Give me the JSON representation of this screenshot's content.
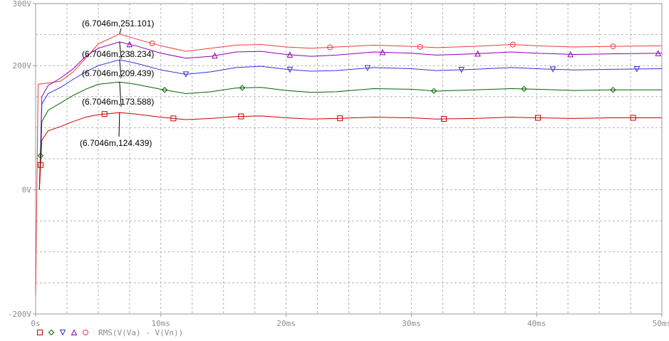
{
  "chart_data": {
    "type": "line",
    "title": "",
    "xlabel": "",
    "ylabel": "",
    "xlim": [
      0,
      50
    ],
    "ylim": [
      -200,
      300
    ],
    "grid": true,
    "x_ticks": [
      {
        "value": 0,
        "label": "0s"
      },
      {
        "value": 10,
        "label": "10ms"
      },
      {
        "value": 20,
        "label": "20ms"
      },
      {
        "value": 30,
        "label": "30ms"
      },
      {
        "value": 40,
        "label": "40ms"
      },
      {
        "value": 50,
        "label": "50ms"
      }
    ],
    "y_ticks": [
      {
        "value": 300,
        "label": "300V"
      },
      {
        "value": 200,
        "label": "200V"
      },
      {
        "value": 0,
        "label": "0V"
      },
      {
        "value": -200,
        "label": "-200V"
      }
    ],
    "legend": {
      "placement": "bottom-left",
      "text": "RMS(V(Va) - V(Vn))"
    },
    "series": [
      {
        "color": "#ee3a3a",
        "marker": "circle",
        "points": [
          [
            0,
            -170
          ],
          [
            0.2,
            170
          ],
          [
            1,
            172
          ],
          [
            2,
            175
          ],
          [
            3,
            190
          ],
          [
            4,
            212
          ],
          [
            5,
            235
          ],
          [
            6.7,
            251.1
          ],
          [
            8,
            243
          ],
          [
            10,
            232
          ],
          [
            12,
            223
          ],
          [
            14,
            228
          ],
          [
            16,
            233
          ],
          [
            18,
            234
          ],
          [
            20,
            230
          ],
          [
            22,
            228
          ],
          [
            24,
            230
          ],
          [
            27,
            233
          ],
          [
            30,
            231
          ],
          [
            32,
            229
          ],
          [
            35,
            231
          ],
          [
            38,
            234
          ],
          [
            40,
            232
          ],
          [
            43,
            230
          ],
          [
            46,
            231
          ],
          [
            50,
            232
          ]
        ],
        "marker_x": [
          9.3,
          23.5,
          30.7,
          38.1,
          46.1
        ]
      },
      {
        "color": "#8a00b4",
        "marker": "triangle",
        "points": [
          [
            0.3,
            0
          ],
          [
            0.5,
            150
          ],
          [
            1,
            168
          ],
          [
            2,
            180
          ],
          [
            3,
            195
          ],
          [
            4,
            215
          ],
          [
            5,
            228
          ],
          [
            6.7,
            238.2
          ],
          [
            8,
            232
          ],
          [
            10,
            220
          ],
          [
            12,
            212
          ],
          [
            14,
            215
          ],
          [
            16,
            222
          ],
          [
            18,
            223
          ],
          [
            20,
            218
          ],
          [
            22,
            215
          ],
          [
            24,
            217
          ],
          [
            27,
            222
          ],
          [
            30,
            220
          ],
          [
            32,
            217
          ],
          [
            35,
            219
          ],
          [
            38,
            222
          ],
          [
            40,
            220
          ],
          [
            43,
            218
          ],
          [
            46,
            219
          ],
          [
            50,
            220
          ]
        ],
        "marker_x": [
          7.5,
          14.3,
          20.3,
          27.7,
          35.3,
          42.7,
          49.7
        ]
      },
      {
        "color": "#3232dc",
        "marker": "inverted-triangle",
        "points": [
          [
            0.3,
            0
          ],
          [
            0.5,
            138
          ],
          [
            1,
            155
          ],
          [
            2,
            165
          ],
          [
            3,
            178
          ],
          [
            4,
            190
          ],
          [
            5,
            200
          ],
          [
            6.7,
            209.4
          ],
          [
            8,
            204
          ],
          [
            10,
            193
          ],
          [
            12,
            186
          ],
          [
            14,
            190
          ],
          [
            16,
            197
          ],
          [
            18,
            199
          ],
          [
            20,
            194
          ],
          [
            22,
            191
          ],
          [
            24,
            192
          ],
          [
            27,
            197
          ],
          [
            30,
            195
          ],
          [
            32,
            192
          ],
          [
            35,
            194
          ],
          [
            38,
            197
          ],
          [
            40,
            195
          ],
          [
            43,
            193
          ],
          [
            46,
            194
          ],
          [
            50,
            195
          ]
        ],
        "marker_x": [
          12.0,
          20.3,
          26.5,
          34.0,
          41.3,
          48.0
        ]
      },
      {
        "color": "#006400",
        "marker": "diamond",
        "points": [
          [
            0.3,
            0
          ],
          [
            0.5,
            110
          ],
          [
            1,
            128
          ],
          [
            2,
            140
          ],
          [
            3,
            152
          ],
          [
            4,
            162
          ],
          [
            5,
            170
          ],
          [
            6.7,
            173.6
          ],
          [
            8,
            170
          ],
          [
            10,
            162
          ],
          [
            12,
            155
          ],
          [
            14,
            158
          ],
          [
            16,
            164
          ],
          [
            18,
            165
          ],
          [
            20,
            160
          ],
          [
            22,
            157
          ],
          [
            24,
            158
          ],
          [
            27,
            163
          ],
          [
            30,
            162
          ],
          [
            32,
            159
          ],
          [
            35,
            161
          ],
          [
            38,
            163
          ],
          [
            40,
            162
          ],
          [
            43,
            160
          ],
          [
            46,
            161
          ],
          [
            50,
            161
          ]
        ],
        "marker_x": [
          0.4,
          10.3,
          16.5,
          31.8,
          39.0,
          46.1
        ]
      },
      {
        "color": "#c80000",
        "marker": "square",
        "points": [
          [
            0.3,
            0
          ],
          [
            0.5,
            80
          ],
          [
            1,
            95
          ],
          [
            2,
            102
          ],
          [
            3,
            110
          ],
          [
            4,
            117
          ],
          [
            5,
            121
          ],
          [
            6.7,
            124.4
          ],
          [
            8,
            122
          ],
          [
            10,
            117
          ],
          [
            12,
            113
          ],
          [
            14,
            115
          ],
          [
            16,
            118
          ],
          [
            18,
            119
          ],
          [
            20,
            116
          ],
          [
            22,
            114
          ],
          [
            24,
            115
          ],
          [
            27,
            117
          ],
          [
            30,
            116
          ],
          [
            32,
            114
          ],
          [
            35,
            115
          ],
          [
            38,
            117
          ],
          [
            40,
            116
          ],
          [
            43,
            115
          ],
          [
            46,
            116
          ],
          [
            50,
            116
          ]
        ],
        "marker_x": [
          0.4,
          5.5,
          11.0,
          16.4,
          24.3,
          32.6,
          40.1,
          47.7
        ]
      }
    ],
    "annotations": [
      {
        "text": "(6.7046m,251.101)",
        "x": 6.7046,
        "y": 251.101
      },
      {
        "text": "(6.7046m,238.234)",
        "x": 6.7046,
        "y": 238.234
      },
      {
        "text": "(6.7046m,209.439)",
        "x": 6.7046,
        "y": 209.439
      },
      {
        "text": "(6.7046m,173.588)",
        "x": 6.7046,
        "y": 173.588
      },
      {
        "text": "(6.7046m,124.439)",
        "x": 6.7046,
        "y": 124.439
      }
    ]
  }
}
